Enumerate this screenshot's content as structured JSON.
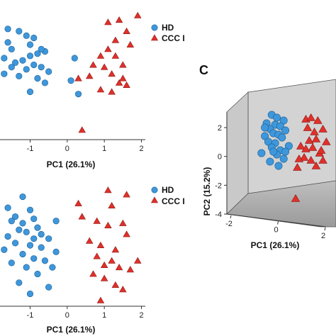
{
  "panel_label": "C",
  "chart_data": [
    {
      "type": "scatter",
      "xlabel": "PC1  (26.1%)",
      "xticks": [
        -1,
        0,
        1,
        2
      ],
      "xlim": [
        -1.85,
        2.2
      ],
      "ylim": [
        -3.0,
        2.4
      ],
      "legend": {
        "placement": "top-right",
        "entries": [
          "HD",
          "CCC I"
        ]
      },
      "series": [
        {
          "name": "HD",
          "color": "#3f97db",
          "marker": "circle",
          "points": [
            [
              -1.6,
              1.3
            ],
            [
              -1.5,
              1.0
            ],
            [
              -1.3,
              1.8
            ],
            [
              -1.1,
              1.6
            ],
            [
              -0.9,
              1.5
            ],
            [
              -1.7,
              0.6
            ],
            [
              -1.4,
              0.4
            ],
            [
              -1.2,
              0.5
            ],
            [
              -1.0,
              0.7
            ],
            [
              -0.8,
              0.8
            ],
            [
              -0.6,
              0.9
            ],
            [
              -1.5,
              0.2
            ],
            [
              -1.1,
              0.1
            ],
            [
              -0.9,
              0.3
            ],
            [
              -0.7,
              0.2
            ],
            [
              -0.5,
              0.0
            ],
            [
              -1.3,
              -0.2
            ],
            [
              -0.8,
              -0.3
            ],
            [
              -0.6,
              -0.5
            ],
            [
              -1.7,
              -0.1
            ],
            [
              0.2,
              0.6
            ],
            [
              0.1,
              -0.4
            ],
            [
              -1.0,
              -0.9
            ],
            [
              0.3,
              -1.0
            ],
            [
              -1.6,
              1.9
            ],
            [
              -1.0,
              1.2
            ],
            [
              -0.7,
              1.0
            ]
          ]
        },
        {
          "name": "CCC I",
          "color": "#e0302a",
          "marker": "triangle",
          "points": [
            [
              1.1,
              2.2
            ],
            [
              1.4,
              2.3
            ],
            [
              1.9,
              2.5
            ],
            [
              1.6,
              1.8
            ],
            [
              1.3,
              1.4
            ],
            [
              1.1,
              1.0
            ],
            [
              1.7,
              1.2
            ],
            [
              0.9,
              0.7
            ],
            [
              1.3,
              0.7
            ],
            [
              0.7,
              0.3
            ],
            [
              1.0,
              0.2
            ],
            [
              1.5,
              0.3
            ],
            [
              0.6,
              -0.2
            ],
            [
              1.2,
              -0.1
            ],
            [
              1.5,
              -0.3
            ],
            [
              0.3,
              -0.3
            ],
            [
              1.6,
              -0.6
            ],
            [
              1.2,
              -0.9
            ],
            [
              0.9,
              -0.8
            ],
            [
              0.4,
              -2.6
            ],
            [
              1.4,
              -0.5
            ]
          ]
        }
      ]
    },
    {
      "type": "scatter",
      "xlabel": "PC1  (26.1%)",
      "xticks": [
        -1,
        0,
        1,
        2
      ],
      "xlim": [
        -1.85,
        2.2
      ],
      "ylim": [
        -3.0,
        2.4
      ],
      "legend": {
        "placement": "top-right",
        "entries": [
          "HD",
          "CCC I"
        ]
      },
      "series": [
        {
          "name": "HD",
          "color": "#3f97db",
          "marker": "circle",
          "points": [
            [
              -1.6,
              1.4
            ],
            [
              -1.2,
              1.9
            ],
            [
              -1.0,
              1.3
            ],
            [
              -1.4,
              1.0
            ],
            [
              -1.5,
              0.8
            ],
            [
              -1.2,
              0.7
            ],
            [
              -0.9,
              0.9
            ],
            [
              -1.3,
              0.4
            ],
            [
              -1.1,
              0.3
            ],
            [
              -0.8,
              0.5
            ],
            [
              -0.7,
              0.2
            ],
            [
              -0.5,
              0.0
            ],
            [
              -1.6,
              0.1
            ],
            [
              -1.4,
              -0.2
            ],
            [
              -1.0,
              -0.3
            ],
            [
              -0.7,
              -0.4
            ],
            [
              -0.3,
              -0.6
            ],
            [
              -1.2,
              -0.7
            ],
            [
              -0.9,
              -0.9
            ],
            [
              -0.6,
              -1.0
            ],
            [
              -1.5,
              -1.1
            ],
            [
              -1.1,
              -1.3
            ],
            [
              -0.4,
              -1.3
            ],
            [
              -0.8,
              -1.6
            ],
            [
              -1.3,
              -2.0
            ],
            [
              -0.5,
              -2.2
            ],
            [
              -1.0,
              -2.5
            ],
            [
              -0.9,
              0.0
            ],
            [
              -1.7,
              -0.5
            ],
            [
              -0.3,
              0.8
            ]
          ]
        },
        {
          "name": "CCC I",
          "color": "#e0302a",
          "marker": "triangle",
          "points": [
            [
              0.3,
              1.6
            ],
            [
              1.1,
              2.2
            ],
            [
              1.6,
              2.0
            ],
            [
              1.2,
              1.5
            ],
            [
              0.4,
              1.0
            ],
            [
              0.8,
              0.8
            ],
            [
              1.1,
              0.6
            ],
            [
              1.5,
              0.7
            ],
            [
              1.6,
              0.2
            ],
            [
              0.6,
              -0.1
            ],
            [
              0.9,
              -0.3
            ],
            [
              1.3,
              -0.5
            ],
            [
              0.8,
              -0.8
            ],
            [
              1.2,
              -1.0
            ],
            [
              1.9,
              -1.0
            ],
            [
              1.0,
              -1.2
            ],
            [
              1.4,
              -1.3
            ],
            [
              1.7,
              -1.4
            ],
            [
              0.7,
              -1.6
            ],
            [
              1.0,
              -1.8
            ],
            [
              1.3,
              -2.1
            ],
            [
              1.5,
              -2.3
            ],
            [
              0.9,
              -2.8
            ]
          ]
        }
      ]
    },
    {
      "type": "scatter",
      "xlabel": "PC1 (26.1%)",
      "ylabel": "PC2 (15.2%)",
      "xticks": [
        -2,
        0,
        2
      ],
      "yticks": [
        2,
        0,
        -2,
        -4
      ],
      "xlim": [
        -2.3,
        2.6
      ],
      "ylim": [
        -4.4,
        2.6
      ],
      "series": [
        {
          "name": "HD",
          "color": "#3f97db",
          "marker": "circle",
          "points": [
            [
              -1.0,
              2.5
            ],
            [
              -0.7,
              2.3
            ],
            [
              -0.3,
              2.1
            ],
            [
              -1.3,
              1.9
            ],
            [
              -0.8,
              1.8
            ],
            [
              -0.5,
              1.7
            ],
            [
              -1.1,
              1.5
            ],
            [
              -0.2,
              1.4
            ],
            [
              -0.9,
              1.2
            ],
            [
              -0.6,
              1.1
            ],
            [
              -1.4,
              1.0
            ],
            [
              -0.4,
              0.9
            ],
            [
              -1.2,
              0.6
            ],
            [
              -0.8,
              0.5
            ],
            [
              -1.0,
              0.2
            ],
            [
              -0.5,
              0.0
            ],
            [
              -1.6,
              -0.2
            ],
            [
              -0.7,
              -0.3
            ],
            [
              -0.3,
              -0.6
            ],
            [
              -1.1,
              -0.8
            ],
            [
              -0.6,
              -1.1
            ],
            [
              0.0,
              0.3
            ],
            [
              -0.2,
              -0.1
            ],
            [
              -1.4,
              1.6
            ],
            [
              -0.9,
              -0.1
            ]
          ]
        },
        {
          "name": "CCC I",
          "color": "#e0302a",
          "marker": "triangle",
          "points": [
            [
              1.0,
              2.2
            ],
            [
              1.3,
              2.3
            ],
            [
              1.7,
              2.1
            ],
            [
              1.1,
              1.6
            ],
            [
              1.5,
              1.3
            ],
            [
              2.0,
              1.5
            ],
            [
              1.2,
              0.7
            ],
            [
              1.6,
              0.8
            ],
            [
              2.2,
              0.6
            ],
            [
              0.7,
              0.3
            ],
            [
              1.0,
              0.1
            ],
            [
              1.4,
              0.2
            ],
            [
              1.8,
              -0.2
            ],
            [
              0.9,
              -0.5
            ],
            [
              1.3,
              -0.7
            ],
            [
              2.0,
              -0.7
            ],
            [
              1.6,
              -1.1
            ],
            [
              0.5,
              -1.2
            ],
            [
              0.4,
              -3.4
            ],
            [
              1.9,
              0.0
            ],
            [
              0.6,
              -0.6
            ]
          ]
        }
      ]
    }
  ]
}
